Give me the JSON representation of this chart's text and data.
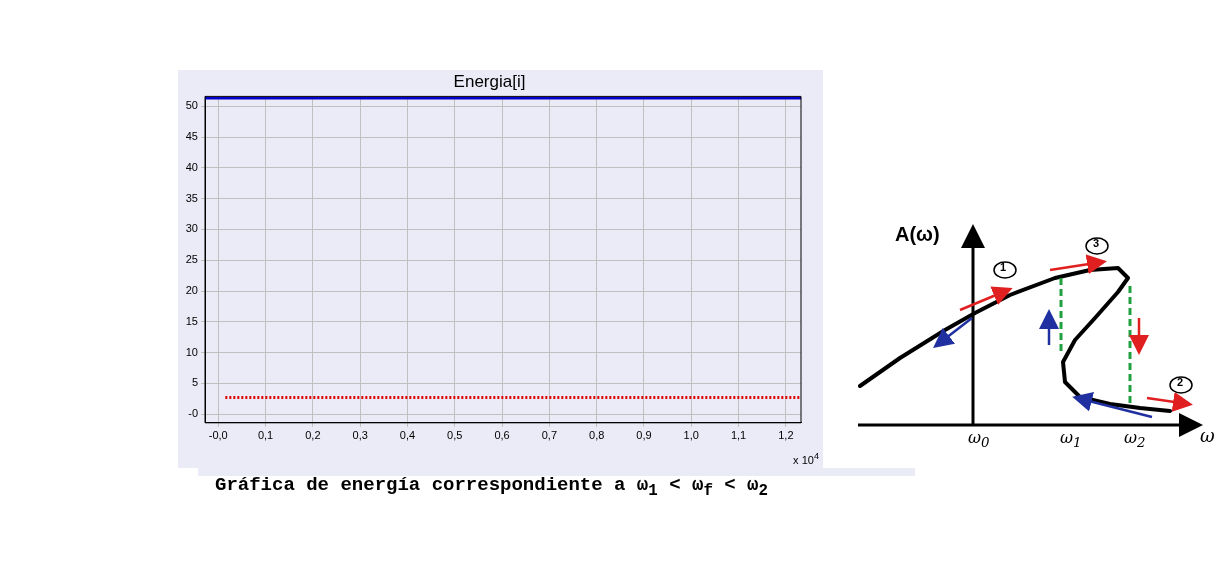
{
  "chart_data": [
    {
      "type": "line",
      "title": "Energia[i]",
      "xlim": [
        -0.028,
        1.232
      ],
      "ylim": [
        -1.4,
        51.6
      ],
      "xticks": [
        {
          "value": 0,
          "label": "-0,0"
        },
        {
          "value": 0.1,
          "label": "0,1"
        },
        {
          "value": 0.2,
          "label": "0,2"
        },
        {
          "value": 0.3,
          "label": "0,3"
        },
        {
          "value": 0.4,
          "label": "0,4"
        },
        {
          "value": 0.5,
          "label": "0,5"
        },
        {
          "value": 0.6,
          "label": "0,6"
        },
        {
          "value": 0.7,
          "label": "0,7"
        },
        {
          "value": 0.8,
          "label": "0,8"
        },
        {
          "value": 0.9,
          "label": "0,9"
        },
        {
          "value": 1.0,
          "label": "1,0"
        },
        {
          "value": 1.1,
          "label": "1,1"
        },
        {
          "value": 1.2,
          "label": "1,2"
        }
      ],
      "yticks": [
        {
          "value": 0,
          "label": "-0"
        },
        5,
        10,
        15,
        20,
        25,
        30,
        35,
        40,
        45,
        50
      ],
      "grid": true,
      "marker": "none",
      "series": [
        {
          "color": "#0000c8",
          "x": [
            -0.028,
            1.232
          ],
          "values": [
            51.3,
            51.3
          ],
          "line_style": "solid"
        },
        {
          "color": "#e00000",
          "x": [
            0.015,
            1.232
          ],
          "values": [
            2.7,
            2.7
          ],
          "line_style": "dotted"
        }
      ],
      "annotations": [
        "x 10$^{4}$",
        "Gráfica de energía correspondiente a  ω$_{1}$ < ω$_{f}$ < ω$_{2}$"
      ]
    },
    {
      "type": "other",
      "xlabel": "ω",
      "ylabel": "A(ω)",
      "annotations": [
        "ω$_{0}$",
        "ω$_{1}$",
        "ω$_{2}$",
        "1",
        "2",
        "3"
      ]
    }
  ]
}
